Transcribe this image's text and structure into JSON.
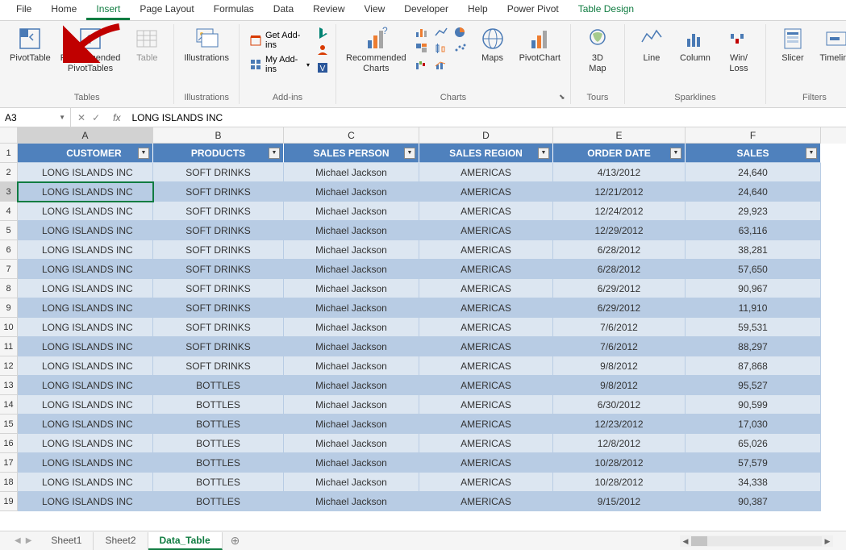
{
  "tabs": [
    "File",
    "Home",
    "Insert",
    "Page Layout",
    "Formulas",
    "Data",
    "Review",
    "View",
    "Developer",
    "Help",
    "Power Pivot",
    "Table Design"
  ],
  "active_tab": "Insert",
  "ribbon": {
    "tables": {
      "label": "Tables",
      "pivot": "PivotTable",
      "recommended": "Recommended\nPivotTables",
      "table": "Table"
    },
    "illustrations": {
      "label": "Illustrations",
      "btn": "Illustrations"
    },
    "addins": {
      "label": "Add-ins",
      "get": "Get Add-ins",
      "my": "My Add-ins"
    },
    "charts": {
      "label": "Charts",
      "recommended": "Recommended\nCharts",
      "maps": "Maps",
      "pivotchart": "PivotChart"
    },
    "tours": {
      "label": "Tours",
      "map3d": "3D\nMap"
    },
    "sparklines": {
      "label": "Sparklines",
      "line": "Line",
      "column": "Column",
      "winloss": "Win/\nLoss"
    },
    "filters": {
      "label": "Filters",
      "slicer": "Slicer",
      "timeline": "Timeline"
    }
  },
  "name_box": "A3",
  "formula": "LONG ISLANDS INC",
  "columns": [
    "A",
    "B",
    "C",
    "D",
    "E",
    "F"
  ],
  "headers": [
    "CUSTOMER",
    "PRODUCTS",
    "SALES PERSON",
    "SALES REGION",
    "ORDER DATE",
    "SALES"
  ],
  "rows": [
    [
      "LONG ISLANDS INC",
      "SOFT DRINKS",
      "Michael Jackson",
      "AMERICAS",
      "4/13/2012",
      "24,640"
    ],
    [
      "LONG ISLANDS INC",
      "SOFT DRINKS",
      "Michael Jackson",
      "AMERICAS",
      "12/21/2012",
      "24,640"
    ],
    [
      "LONG ISLANDS INC",
      "SOFT DRINKS",
      "Michael Jackson",
      "AMERICAS",
      "12/24/2012",
      "29,923"
    ],
    [
      "LONG ISLANDS INC",
      "SOFT DRINKS",
      "Michael Jackson",
      "AMERICAS",
      "12/29/2012",
      "63,116"
    ],
    [
      "LONG ISLANDS INC",
      "SOFT DRINKS",
      "Michael Jackson",
      "AMERICAS",
      "6/28/2012",
      "38,281"
    ],
    [
      "LONG ISLANDS INC",
      "SOFT DRINKS",
      "Michael Jackson",
      "AMERICAS",
      "6/28/2012",
      "57,650"
    ],
    [
      "LONG ISLANDS INC",
      "SOFT DRINKS",
      "Michael Jackson",
      "AMERICAS",
      "6/29/2012",
      "90,967"
    ],
    [
      "LONG ISLANDS INC",
      "SOFT DRINKS",
      "Michael Jackson",
      "AMERICAS",
      "6/29/2012",
      "11,910"
    ],
    [
      "LONG ISLANDS INC",
      "SOFT DRINKS",
      "Michael Jackson",
      "AMERICAS",
      "7/6/2012",
      "59,531"
    ],
    [
      "LONG ISLANDS INC",
      "SOFT DRINKS",
      "Michael Jackson",
      "AMERICAS",
      "7/6/2012",
      "88,297"
    ],
    [
      "LONG ISLANDS INC",
      "SOFT DRINKS",
      "Michael Jackson",
      "AMERICAS",
      "9/8/2012",
      "87,868"
    ],
    [
      "LONG ISLANDS INC",
      "BOTTLES",
      "Michael Jackson",
      "AMERICAS",
      "9/8/2012",
      "95,527"
    ],
    [
      "LONG ISLANDS INC",
      "BOTTLES",
      "Michael Jackson",
      "AMERICAS",
      "6/30/2012",
      "90,599"
    ],
    [
      "LONG ISLANDS INC",
      "BOTTLES",
      "Michael Jackson",
      "AMERICAS",
      "12/23/2012",
      "17,030"
    ],
    [
      "LONG ISLANDS INC",
      "BOTTLES",
      "Michael Jackson",
      "AMERICAS",
      "12/8/2012",
      "65,026"
    ],
    [
      "LONG ISLANDS INC",
      "BOTTLES",
      "Michael Jackson",
      "AMERICAS",
      "10/28/2012",
      "57,579"
    ],
    [
      "LONG ISLANDS INC",
      "BOTTLES",
      "Michael Jackson",
      "AMERICAS",
      "10/28/2012",
      "34,338"
    ],
    [
      "LONG ISLANDS INC",
      "BOTTLES",
      "Michael Jackson",
      "AMERICAS",
      "9/15/2012",
      "90,387"
    ]
  ],
  "selected_row": 3,
  "sheets": [
    "Sheet1",
    "Sheet2",
    "Data_Table"
  ],
  "active_sheet": "Data_Table",
  "colors": {
    "header_bg": "#4f81bd",
    "row_even": "#dce6f1",
    "row_odd": "#b8cce4",
    "accent": "#107c41",
    "arrow": "#c00000"
  }
}
